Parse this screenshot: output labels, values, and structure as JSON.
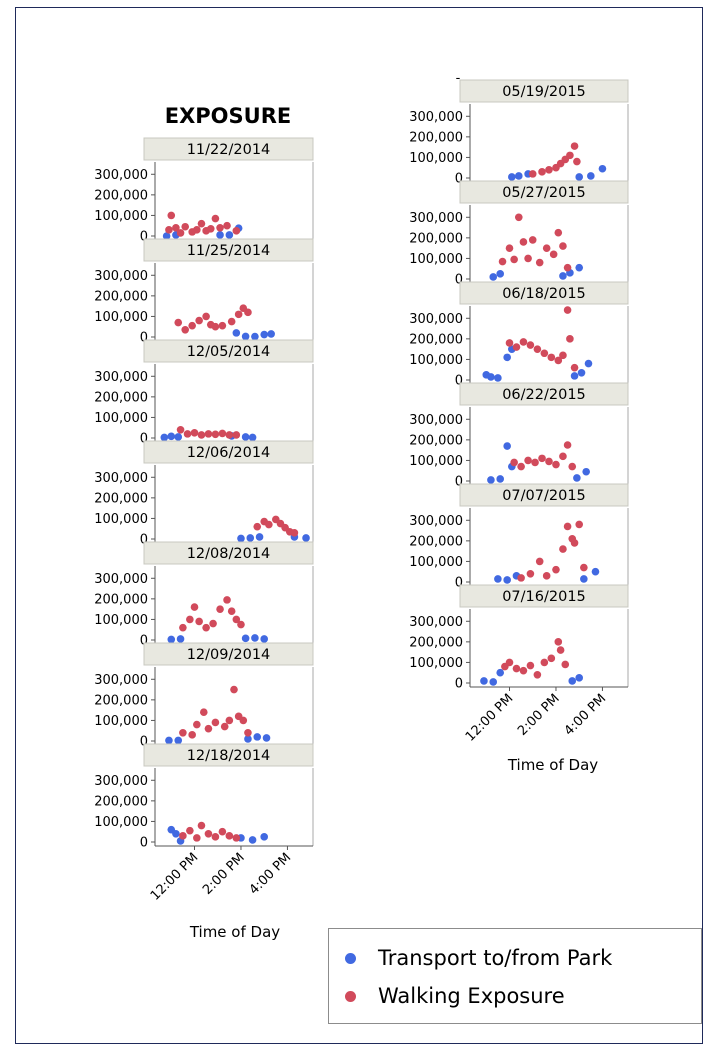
{
  "chart_data": {
    "type": "scatter",
    "title": "EXPOSURE",
    "xlabel": "Time of Day",
    "x_ticks": [
      "12:00 PM",
      "2:00 PM",
      "4:00 PM"
    ],
    "y_ticks": [
      "0",
      "100,000",
      "200,000",
      "300,000"
    ],
    "ylim": [
      0,
      350000
    ],
    "xlim_hours": [
      10.3,
      17.1
    ],
    "grid": false,
    "legend_position": "bottom-right",
    "series": [
      {
        "name": "Transport to/from Park",
        "color": "#4169E1"
      },
      {
        "name": "Walking Exposure",
        "color": "#D14A5B"
      }
    ],
    "panels": [
      {
        "date": "11/22/2014",
        "col": 0,
        "transport": [
          [
            10.8,
            0
          ],
          [
            11.2,
            5000
          ],
          [
            13.1,
            5000
          ],
          [
            13.5,
            5000
          ],
          [
            13.9,
            38000
          ]
        ],
        "walking": [
          [
            10.9,
            30000
          ],
          [
            11.0,
            100000
          ],
          [
            11.2,
            40000
          ],
          [
            11.4,
            15000
          ],
          [
            11.6,
            45000
          ],
          [
            11.9,
            20000
          ],
          [
            12.1,
            30000
          ],
          [
            12.3,
            60000
          ],
          [
            12.5,
            25000
          ],
          [
            12.7,
            35000
          ],
          [
            12.9,
            85000
          ],
          [
            13.1,
            40000
          ],
          [
            13.4,
            50000
          ],
          [
            13.8,
            25000
          ]
        ]
      },
      {
        "date": "11/25/2014",
        "col": 0,
        "transport": [
          [
            13.8,
            20000
          ],
          [
            14.2,
            3000
          ],
          [
            14.6,
            2000
          ],
          [
            15.0,
            12000
          ],
          [
            15.3,
            15000
          ]
        ],
        "walking": [
          [
            11.3,
            70000
          ],
          [
            11.6,
            35000
          ],
          [
            11.9,
            55000
          ],
          [
            12.2,
            80000
          ],
          [
            12.5,
            100000
          ],
          [
            12.7,
            60000
          ],
          [
            12.9,
            50000
          ],
          [
            13.2,
            55000
          ],
          [
            13.6,
            75000
          ],
          [
            13.9,
            110000
          ],
          [
            14.1,
            140000
          ],
          [
            14.3,
            120000
          ]
        ]
      },
      {
        "date": "12/05/2014",
        "col": 0,
        "transport": [
          [
            10.7,
            3000
          ],
          [
            11.0,
            8000
          ],
          [
            11.3,
            5000
          ],
          [
            13.6,
            10000
          ],
          [
            14.2,
            5000
          ],
          [
            14.5,
            3000
          ]
        ],
        "walking": [
          [
            11.4,
            40000
          ],
          [
            11.7,
            20000
          ],
          [
            12.0,
            25000
          ],
          [
            12.3,
            15000
          ],
          [
            12.6,
            20000
          ],
          [
            12.9,
            18000
          ],
          [
            13.2,
            22000
          ],
          [
            13.5,
            15000
          ],
          [
            13.8,
            15000
          ]
        ]
      },
      {
        "date": "12/06/2014",
        "col": 0,
        "transport": [
          [
            14.0,
            3000
          ],
          [
            14.4,
            5000
          ],
          [
            14.8,
            10000
          ],
          [
            16.3,
            10000
          ],
          [
            16.8,
            5000
          ]
        ],
        "walking": [
          [
            14.7,
            60000
          ],
          [
            15.0,
            85000
          ],
          [
            15.2,
            70000
          ],
          [
            15.5,
            95000
          ],
          [
            15.7,
            75000
          ],
          [
            15.9,
            55000
          ],
          [
            16.1,
            35000
          ],
          [
            16.3,
            30000
          ]
        ]
      },
      {
        "date": "12/08/2014",
        "col": 0,
        "transport": [
          [
            11.0,
            3000
          ],
          [
            11.4,
            5000
          ],
          [
            14.2,
            8000
          ],
          [
            14.6,
            10000
          ],
          [
            15.0,
            5000
          ]
        ],
        "walking": [
          [
            11.5,
            60000
          ],
          [
            11.8,
            100000
          ],
          [
            12.0,
            160000
          ],
          [
            12.2,
            90000
          ],
          [
            12.5,
            60000
          ],
          [
            12.8,
            80000
          ],
          [
            13.1,
            150000
          ],
          [
            13.4,
            195000
          ],
          [
            13.6,
            140000
          ],
          [
            13.8,
            100000
          ],
          [
            14.0,
            75000
          ]
        ]
      },
      {
        "date": "12/09/2014",
        "col": 0,
        "transport": [
          [
            10.9,
            3000
          ],
          [
            11.3,
            3000
          ],
          [
            14.3,
            10000
          ],
          [
            14.7,
            20000
          ],
          [
            15.1,
            15000
          ]
        ],
        "walking": [
          [
            11.5,
            40000
          ],
          [
            11.9,
            30000
          ],
          [
            12.1,
            80000
          ],
          [
            12.4,
            140000
          ],
          [
            12.6,
            60000
          ],
          [
            12.9,
            90000
          ],
          [
            13.3,
            70000
          ],
          [
            13.5,
            100000
          ],
          [
            13.7,
            250000
          ],
          [
            13.9,
            120000
          ],
          [
            14.1,
            100000
          ],
          [
            14.3,
            40000
          ]
        ]
      },
      {
        "date": "12/18/2014",
        "col": 0,
        "transport": [
          [
            11.0,
            60000
          ],
          [
            11.2,
            40000
          ],
          [
            11.4,
            5000
          ],
          [
            14.0,
            20000
          ],
          [
            14.5,
            10000
          ],
          [
            15.0,
            25000
          ]
        ],
        "walking": [
          [
            11.5,
            30000
          ],
          [
            11.8,
            55000
          ],
          [
            12.1,
            20000
          ],
          [
            12.3,
            80000
          ],
          [
            12.6,
            40000
          ],
          [
            12.9,
            25000
          ],
          [
            13.2,
            50000
          ],
          [
            13.5,
            30000
          ],
          [
            13.8,
            20000
          ]
        ]
      },
      {
        "date": "05/19/2015",
        "col": 1,
        "transport": [
          [
            12.1,
            5000
          ],
          [
            12.4,
            10000
          ],
          [
            12.8,
            20000
          ],
          [
            15.0,
            5000
          ],
          [
            15.5,
            10000
          ],
          [
            16.0,
            45000
          ]
        ],
        "walking": [
          [
            13.0,
            20000
          ],
          [
            13.4,
            30000
          ],
          [
            13.7,
            40000
          ],
          [
            14.0,
            50000
          ],
          [
            14.2,
            70000
          ],
          [
            14.4,
            90000
          ],
          [
            14.6,
            110000
          ],
          [
            14.8,
            155000
          ],
          [
            14.9,
            80000
          ]
        ]
      },
      {
        "date": "05/27/2015",
        "col": 1,
        "transport": [
          [
            11.3,
            10000
          ],
          [
            11.6,
            25000
          ],
          [
            14.3,
            15000
          ],
          [
            14.6,
            30000
          ],
          [
            15.0,
            55000
          ]
        ],
        "walking": [
          [
            11.7,
            85000
          ],
          [
            12.0,
            150000
          ],
          [
            12.2,
            95000
          ],
          [
            12.4,
            300000
          ],
          [
            12.6,
            180000
          ],
          [
            12.8,
            100000
          ],
          [
            13.0,
            190000
          ],
          [
            13.3,
            80000
          ],
          [
            13.6,
            150000
          ],
          [
            13.9,
            120000
          ],
          [
            14.1,
            225000
          ],
          [
            14.3,
            160000
          ],
          [
            14.5,
            55000
          ]
        ]
      },
      {
        "date": "06/18/2015",
        "col": 1,
        "transport": [
          [
            11.0,
            25000
          ],
          [
            11.2,
            15000
          ],
          [
            11.5,
            10000
          ],
          [
            11.9,
            110000
          ],
          [
            12.1,
            150000
          ],
          [
            14.8,
            20000
          ],
          [
            15.1,
            35000
          ],
          [
            15.4,
            80000
          ]
        ],
        "walking": [
          [
            12.0,
            180000
          ],
          [
            12.3,
            160000
          ],
          [
            12.6,
            185000
          ],
          [
            12.9,
            170000
          ],
          [
            13.2,
            150000
          ],
          [
            13.5,
            130000
          ],
          [
            13.8,
            110000
          ],
          [
            14.1,
            95000
          ],
          [
            14.3,
            120000
          ],
          [
            14.5,
            340000
          ],
          [
            14.6,
            200000
          ],
          [
            14.8,
            60000
          ]
        ]
      },
      {
        "date": "06/22/2015",
        "col": 1,
        "transport": [
          [
            11.2,
            5000
          ],
          [
            11.6,
            10000
          ],
          [
            11.9,
            170000
          ],
          [
            12.1,
            70000
          ],
          [
            14.9,
            15000
          ],
          [
            15.3,
            45000
          ]
        ],
        "walking": [
          [
            12.2,
            90000
          ],
          [
            12.5,
            70000
          ],
          [
            12.8,
            100000
          ],
          [
            13.1,
            90000
          ],
          [
            13.4,
            110000
          ],
          [
            13.7,
            95000
          ],
          [
            14.0,
            80000
          ],
          [
            14.3,
            120000
          ],
          [
            14.5,
            175000
          ],
          [
            14.7,
            70000
          ]
        ]
      },
      {
        "date": "07/07/2015",
        "col": 1,
        "transport": [
          [
            11.5,
            15000
          ],
          [
            11.9,
            10000
          ],
          [
            12.3,
            30000
          ],
          [
            15.2,
            15000
          ],
          [
            15.7,
            50000
          ]
        ],
        "walking": [
          [
            12.5,
            20000
          ],
          [
            12.9,
            40000
          ],
          [
            13.3,
            100000
          ],
          [
            13.6,
            30000
          ],
          [
            14.0,
            60000
          ],
          [
            14.3,
            160000
          ],
          [
            14.5,
            270000
          ],
          [
            14.7,
            210000
          ],
          [
            14.8,
            190000
          ],
          [
            15.0,
            280000
          ],
          [
            15.2,
            70000
          ]
        ]
      },
      {
        "date": "07/16/2015",
        "col": 1,
        "transport": [
          [
            10.9,
            10000
          ],
          [
            11.3,
            5000
          ],
          [
            11.6,
            50000
          ],
          [
            14.7,
            10000
          ],
          [
            15.0,
            25000
          ]
        ],
        "walking": [
          [
            11.8,
            80000
          ],
          [
            12.0,
            100000
          ],
          [
            12.3,
            70000
          ],
          [
            12.6,
            60000
          ],
          [
            12.9,
            85000
          ],
          [
            13.2,
            40000
          ],
          [
            13.5,
            100000
          ],
          [
            13.8,
            120000
          ],
          [
            14.1,
            200000
          ],
          [
            14.2,
            160000
          ],
          [
            14.4,
            90000
          ]
        ]
      }
    ]
  }
}
